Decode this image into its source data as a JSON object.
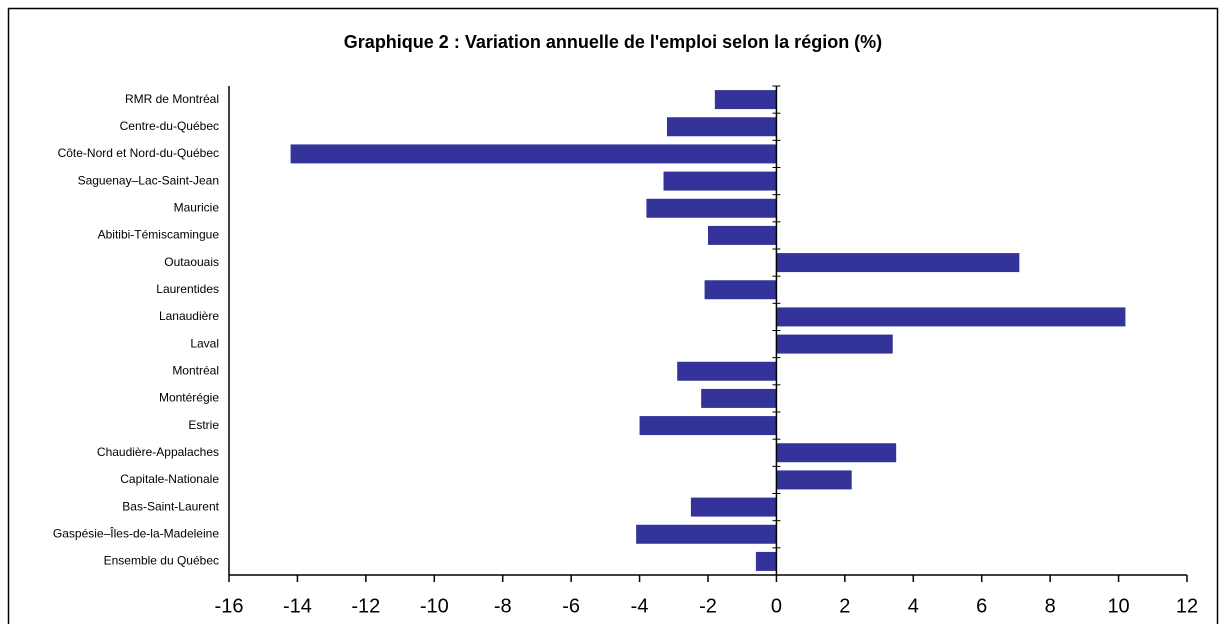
{
  "chart_data": {
    "type": "hbar",
    "title": "Graphique 2 : Variation annuelle de l'emploi selon la région (%)",
    "categories": [
      "RMR de Montréal",
      "Centre-du-Québec",
      "Côte-Nord et Nord-du-Québec",
      "Saguenay–Lac-Saint-Jean",
      "Mauricie",
      "Abitibi-Témiscamingue",
      "Outaouais",
      "Laurentides",
      "Lanaudière",
      "Laval",
      "Montréal",
      "Montérégie",
      "Estrie",
      "Chaudière-Appalaches",
      "Capitale-Nationale",
      "Bas-Saint-Laurent",
      "Gaspésie–Îles-de-la-Madeleine",
      "Ensemble du Québec"
    ],
    "values": [
      -1.8,
      -3.2,
      -14.2,
      -3.3,
      -3.8,
      -2.0,
      7.1,
      -2.1,
      10.2,
      3.4,
      -2.9,
      -2.2,
      -4.0,
      3.5,
      2.2,
      -2.5,
      -4.1,
      -0.6
    ],
    "color": "#333399",
    "xlim": [
      -16,
      12
    ],
    "xticks": [
      -16,
      -14,
      -12,
      -10,
      -8,
      -6,
      -4,
      -2,
      0,
      2,
      4,
      6,
      8,
      10,
      12
    ]
  }
}
